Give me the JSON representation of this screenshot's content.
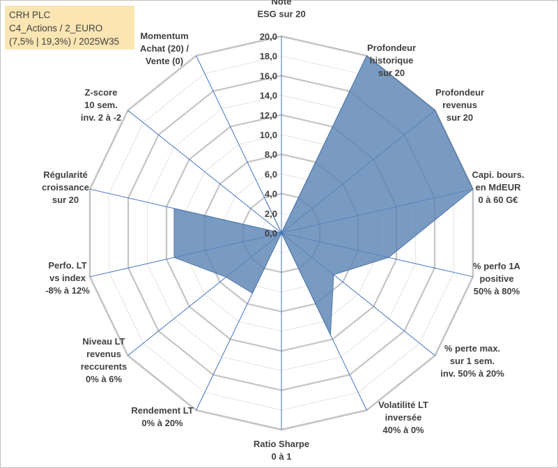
{
  "info": {
    "line1": "CRH PLC",
    "line2": "C4_Actions / 2_EURO",
    "line3": "(7,5% | 19,3%) / 2025W35"
  },
  "colors": {
    "fill": "#5b85b5",
    "fill_opacity": 0.82,
    "stroke": "#4a74a8",
    "grid": "#c8c8c8",
    "axis": "#4472c4",
    "info_bg": "#fbe6b3"
  },
  "chart_data": {
    "type": "radar",
    "title": "",
    "rmin": 0,
    "rmax": 20,
    "tick_step": 2,
    "tick_labels": [
      "0,0",
      "2,0",
      "4,0",
      "6,0",
      "8,0",
      "10,0",
      "12,0",
      "14,0",
      "16,0",
      "18,0",
      "20,0"
    ],
    "categories": [
      [
        "Note",
        "ESG sur 20"
      ],
      [
        "Profondeur",
        "historique",
        "sur 20"
      ],
      [
        "Profondeur",
        "revenus",
        "sur 20"
      ],
      [
        "Capi. bours.",
        "en MdEUR",
        "0 à 60 G€"
      ],
      [
        "% perfo 1A",
        "positive",
        "50% à 80%"
      ],
      [
        "% perte max.",
        "sur 1 sem.",
        "inv. 50% à 20%"
      ],
      [
        "Volatilité LT",
        "inversée",
        "40% à 0%"
      ],
      [
        "Ratio Sharpe",
        "0 à 1"
      ],
      [
        "Rendement LT",
        "0% à 20%"
      ],
      [
        "Niveau LT",
        "revenus",
        "reccurents",
        "0% à 6%"
      ],
      [
        "Perfo. LT",
        "vs index",
        "-8% à 12%"
      ],
      [
        "Régularité",
        "croissance",
        "sur 20"
      ],
      [
        "Z-score",
        "10 sem.",
        "inv. 2 à -2"
      ],
      [
        "Momentum",
        "Achat (20) /",
        "Vente (0)"
      ]
    ],
    "series": [
      {
        "values": [
          0.0,
          20.0,
          20.0,
          20.0,
          11.2,
          6.8,
          11.5,
          0.0,
          6.8,
          7.2,
          11.2,
          11.2,
          0.0,
          3.4
        ]
      }
    ],
    "grid": true,
    "legend": "none"
  }
}
